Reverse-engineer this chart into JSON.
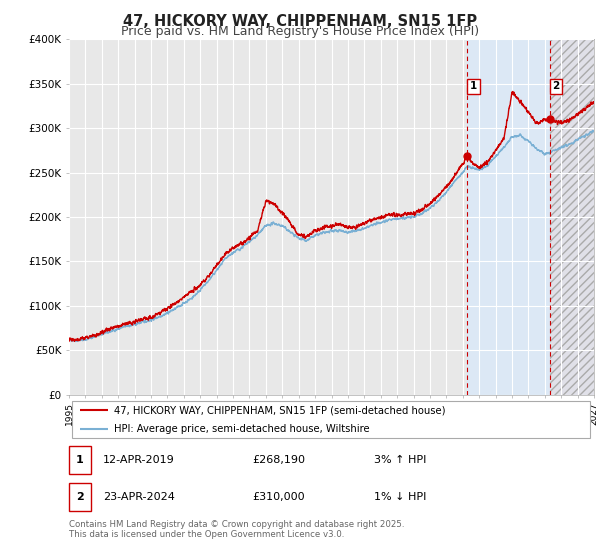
{
  "title": "47, HICKORY WAY, CHIPPENHAM, SN15 1FP",
  "subtitle": "Price paid vs. HM Land Registry's House Price Index (HPI)",
  "xlim": [
    1995,
    2027
  ],
  "ylim": [
    0,
    400000
  ],
  "yticks": [
    0,
    50000,
    100000,
    150000,
    200000,
    250000,
    300000,
    350000,
    400000
  ],
  "ytick_labels": [
    "£0",
    "£50K",
    "£100K",
    "£150K",
    "£200K",
    "£250K",
    "£300K",
    "£350K",
    "£400K"
  ],
  "xticks": [
    1995,
    1996,
    1997,
    1998,
    1999,
    2000,
    2001,
    2002,
    2003,
    2004,
    2005,
    2006,
    2007,
    2008,
    2009,
    2010,
    2011,
    2012,
    2013,
    2014,
    2015,
    2016,
    2017,
    2018,
    2019,
    2020,
    2021,
    2022,
    2023,
    2024,
    2025,
    2026,
    2027
  ],
  "marker1_x": 2019.28,
  "marker1_y": 268190,
  "marker2_x": 2024.31,
  "marker2_y": 310000,
  "vline1_x": 2019.28,
  "vline2_x": 2024.31,
  "shaded1_start": 2019.28,
  "shaded1_end": 2024.31,
  "shaded2_start": 2024.31,
  "shaded2_end": 2027,
  "legend_line1": "47, HICKORY WAY, CHIPPENHAM, SN15 1FP (semi-detached house)",
  "legend_line2": "HPI: Average price, semi-detached house, Wiltshire",
  "line1_color": "#cc0000",
  "line2_color": "#7ab0d4",
  "annotation1_date": "12-APR-2019",
  "annotation1_price": "£268,190",
  "annotation1_hpi": "3% ↑ HPI",
  "annotation2_date": "23-APR-2024",
  "annotation2_price": "£310,000",
  "annotation2_hpi": "1% ↓ HPI",
  "footer": "Contains HM Land Registry data © Crown copyright and database right 2025.\nThis data is licensed under the Open Government Licence v3.0.",
  "background_color": "#ffffff",
  "plot_bg_color": "#e8e8e8",
  "shaded1_color": "#dce8f5",
  "grid_color": "#ffffff",
  "title_fontsize": 10.5,
  "subtitle_fontsize": 9
}
